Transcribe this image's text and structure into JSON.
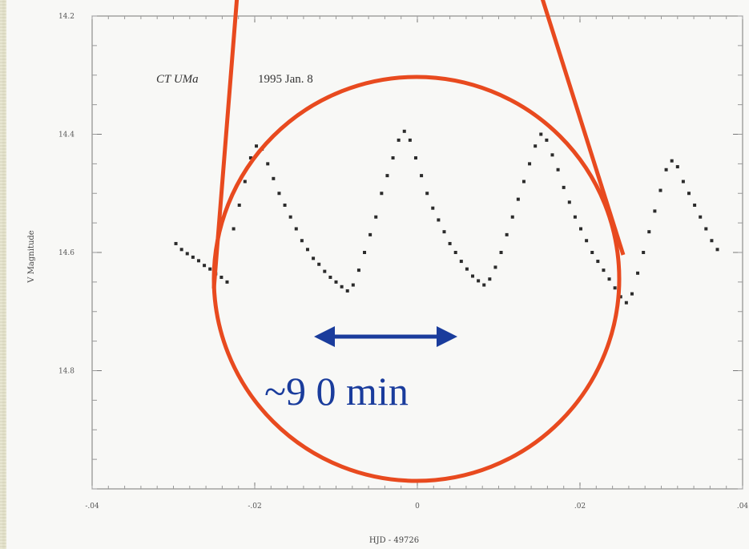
{
  "chart_data": {
    "type": "scatter",
    "title_object": "CT UMa",
    "title_date": "1995 Jan. 8",
    "xlabel": "HJD - 49726",
    "ylabel": "V Magnitude",
    "xlim": [
      -0.04,
      0.04
    ],
    "ylim": [
      14.2,
      15.0
    ],
    "y_inverted": true,
    "x_ticks": [
      {
        "value": -0.04,
        "label": "-.04"
      },
      {
        "value": -0.02,
        "label": "-.02"
      },
      {
        "value": 0.0,
        "label": "0"
      },
      {
        "value": 0.02,
        "label": ".02"
      },
      {
        "value": 0.04,
        "label": ".04"
      }
    ],
    "y_ticks": [
      {
        "value": 14.2,
        "label": "14.2"
      },
      {
        "value": 14.4,
        "label": "14.4"
      },
      {
        "value": 14.6,
        "label": "14.6"
      },
      {
        "value": 14.8,
        "label": "14.8"
      }
    ],
    "series": [
      {
        "points": [
          [
            -0.0297,
            14.585
          ],
          [
            -0.029,
            14.595
          ],
          [
            -0.0283,
            14.602
          ],
          [
            -0.0276,
            14.608
          ],
          [
            -0.0269,
            14.614
          ],
          [
            -0.0262,
            14.622
          ],
          [
            -0.0255,
            14.628
          ],
          [
            -0.0248,
            14.636
          ],
          [
            -0.0241,
            14.642
          ],
          [
            -0.0234,
            14.65
          ],
          [
            -0.0226,
            14.56
          ],
          [
            -0.0219,
            14.52
          ],
          [
            -0.0212,
            14.48
          ],
          [
            -0.0205,
            14.44
          ],
          [
            -0.0198,
            14.42
          ],
          [
            -0.0191,
            14.425
          ],
          [
            -0.0184,
            14.45
          ],
          [
            -0.0177,
            14.475
          ],
          [
            -0.017,
            14.5
          ],
          [
            -0.0163,
            14.52
          ],
          [
            -0.0156,
            14.54
          ],
          [
            -0.0149,
            14.56
          ],
          [
            -0.0142,
            14.58
          ],
          [
            -0.0135,
            14.595
          ],
          [
            -0.0128,
            14.61
          ],
          [
            -0.0121,
            14.62
          ],
          [
            -0.0114,
            14.632
          ],
          [
            -0.0107,
            14.642
          ],
          [
            -0.01,
            14.65
          ],
          [
            -0.0093,
            14.658
          ],
          [
            -0.0086,
            14.665
          ],
          [
            -0.0079,
            14.655
          ],
          [
            -0.0072,
            14.63
          ],
          [
            -0.0065,
            14.6
          ],
          [
            -0.0058,
            14.57
          ],
          [
            -0.0051,
            14.54
          ],
          [
            -0.0044,
            14.5
          ],
          [
            -0.0037,
            14.47
          ],
          [
            -0.003,
            14.44
          ],
          [
            -0.0023,
            14.41
          ],
          [
            -0.0016,
            14.395
          ],
          [
            -0.0009,
            14.41
          ],
          [
            -0.0002,
            14.44
          ],
          [
            0.0005,
            14.47
          ],
          [
            0.0012,
            14.5
          ],
          [
            0.0019,
            14.525
          ],
          [
            0.0026,
            14.545
          ],
          [
            0.0033,
            14.565
          ],
          [
            0.004,
            14.585
          ],
          [
            0.0047,
            14.6
          ],
          [
            0.0054,
            14.615
          ],
          [
            0.0061,
            14.628
          ],
          [
            0.0068,
            14.64
          ],
          [
            0.0075,
            14.648
          ],
          [
            0.0082,
            14.655
          ],
          [
            0.0089,
            14.645
          ],
          [
            0.0096,
            14.625
          ],
          [
            0.0103,
            14.6
          ],
          [
            0.011,
            14.57
          ],
          [
            0.0117,
            14.54
          ],
          [
            0.0124,
            14.51
          ],
          [
            0.0131,
            14.48
          ],
          [
            0.0138,
            14.45
          ],
          [
            0.0145,
            14.42
          ],
          [
            0.0152,
            14.4
          ],
          [
            0.0159,
            14.41
          ],
          [
            0.0166,
            14.435
          ],
          [
            0.0173,
            14.46
          ],
          [
            0.018,
            14.49
          ],
          [
            0.0187,
            14.515
          ],
          [
            0.0194,
            14.54
          ],
          [
            0.0201,
            14.56
          ],
          [
            0.0208,
            14.58
          ],
          [
            0.0215,
            14.6
          ],
          [
            0.0222,
            14.615
          ],
          [
            0.0229,
            14.63
          ],
          [
            0.0236,
            14.645
          ],
          [
            0.0243,
            14.66
          ],
          [
            0.025,
            14.675
          ],
          [
            0.0257,
            14.685
          ],
          [
            0.0264,
            14.67
          ],
          [
            0.0271,
            14.635
          ],
          [
            0.0278,
            14.6
          ],
          [
            0.0285,
            14.565
          ],
          [
            0.0292,
            14.53
          ],
          [
            0.0299,
            14.495
          ],
          [
            0.0306,
            14.46
          ],
          [
            0.0313,
            14.445
          ],
          [
            0.032,
            14.455
          ],
          [
            0.0327,
            14.48
          ],
          [
            0.0334,
            14.5
          ],
          [
            0.0341,
            14.52
          ],
          [
            0.0348,
            14.54
          ],
          [
            0.0355,
            14.56
          ],
          [
            0.0362,
            14.58
          ],
          [
            0.0369,
            14.595
          ]
        ]
      }
    ]
  },
  "annotation": {
    "period_label": "~9 0 min"
  },
  "colors": {
    "background": "#e4e2c9",
    "plot_frame": "#f7f7f4",
    "data_points": "#2b2b2b",
    "highlight_circle": "#e84a1f",
    "arrow": "#1a3c9c"
  }
}
